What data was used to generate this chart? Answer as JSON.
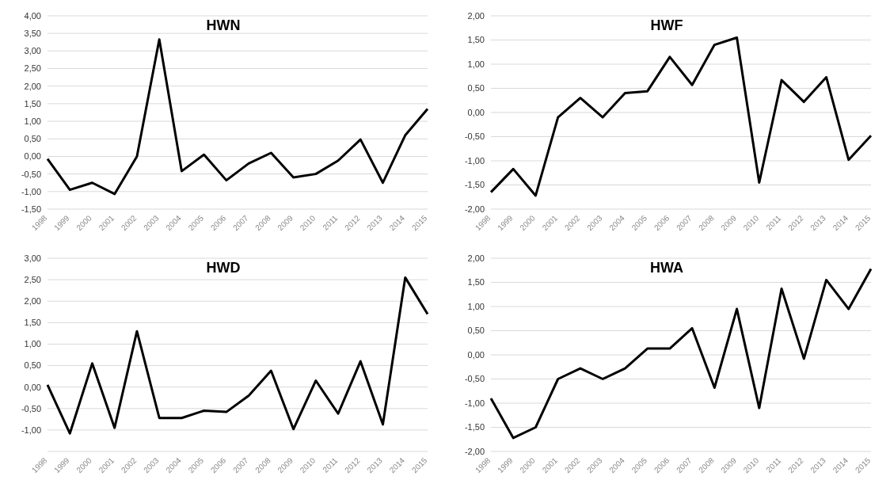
{
  "chart_data": [
    {
      "type": "line",
      "title": "HWN",
      "categories": [
        "1998",
        "1999",
        "2000",
        "2001",
        "2002",
        "2003",
        "2004",
        "2005",
        "2006",
        "2007",
        "2008",
        "2009",
        "2010",
        "2011",
        "2012",
        "2013",
        "2014",
        "2015"
      ],
      "series": [
        {
          "color": "#000000",
          "values": [
            -0.07,
            -0.95,
            -0.75,
            -1.07,
            0.0,
            3.33,
            -0.42,
            0.05,
            -0.68,
            -0.2,
            0.1,
            -0.6,
            -0.5,
            -0.12,
            0.48,
            -0.75,
            0.6,
            1.35
          ]
        }
      ],
      "ylim": [
        -1.5,
        4
      ],
      "yticks": [
        {
          "value": -1.5,
          "label": "-1,50"
        },
        {
          "value": -1,
          "label": "-1,00"
        },
        {
          "value": -0.5,
          "label": "-0,50"
        },
        {
          "value": 0,
          "label": "0,00"
        },
        {
          "value": 0.5,
          "label": "0,50"
        },
        {
          "value": 1,
          "label": "1,00"
        },
        {
          "value": 1.5,
          "label": "1,50"
        },
        {
          "value": 2,
          "label": "2,00"
        },
        {
          "value": 2.5,
          "label": "2,50"
        },
        {
          "value": 3,
          "label": "3,00"
        },
        {
          "value": 3.5,
          "label": "3,50"
        },
        {
          "value": 4,
          "label": "4,00"
        }
      ],
      "grid": "y",
      "marker": "none",
      "line_style": "solid",
      "legend": false
    },
    {
      "type": "line",
      "title": "HWF",
      "categories": [
        "1998",
        "1999",
        "2000",
        "2001",
        "2002",
        "2003",
        "2004",
        "2005",
        "2006",
        "2007",
        "2008",
        "2009",
        "2010",
        "2011",
        "2012",
        "2013",
        "2014",
        "2015"
      ],
      "series": [
        {
          "color": "#000000",
          "values": [
            -1.65,
            -1.17,
            -1.72,
            -0.1,
            0.3,
            -0.1,
            0.4,
            0.44,
            1.15,
            0.57,
            1.4,
            1.55,
            -1.45,
            0.67,
            0.22,
            0.73,
            -0.98,
            -0.48
          ]
        }
      ],
      "ylim": [
        -2,
        2
      ],
      "yticks": [
        {
          "value": -2,
          "label": "-2,00"
        },
        {
          "value": -1.5,
          "label": "-1,50"
        },
        {
          "value": -1,
          "label": "-1,00"
        },
        {
          "value": -0.5,
          "label": "-0,50"
        },
        {
          "value": 0,
          "label": "0,00"
        },
        {
          "value": 0.5,
          "label": "0,50"
        },
        {
          "value": 1,
          "label": "1,00"
        },
        {
          "value": 1.5,
          "label": "1,50"
        },
        {
          "value": 2,
          "label": "2,00"
        }
      ],
      "grid": "y",
      "marker": "none",
      "line_style": "solid",
      "legend": false
    },
    {
      "type": "line",
      "title": "HWD",
      "categories": [
        "1998",
        "1999",
        "2000",
        "2001",
        "2002",
        "2003",
        "2004",
        "2005",
        "2006",
        "2007",
        "2008",
        "2009",
        "2010",
        "2011",
        "2012",
        "2013",
        "2014",
        "2015"
      ],
      "series": [
        {
          "color": "#000000",
          "values": [
            0.05,
            -1.08,
            0.55,
            -0.95,
            1.3,
            -0.72,
            -0.72,
            -0.55,
            -0.58,
            -0.2,
            0.38,
            -0.98,
            0.15,
            -0.62,
            0.6,
            -0.87,
            2.55,
            1.7
          ]
        }
      ],
      "ylim": [
        -1.5,
        3
      ],
      "yticks": [
        {
          "value": -1,
          "label": "-1,00"
        },
        {
          "value": -0.5,
          "label": "-0,50"
        },
        {
          "value": 0,
          "label": "0,00"
        },
        {
          "value": 0.5,
          "label": "0,50"
        },
        {
          "value": 1,
          "label": "1,00"
        },
        {
          "value": 1.5,
          "label": "1,50"
        },
        {
          "value": 2,
          "label": "2,00"
        },
        {
          "value": 2.5,
          "label": "2,50"
        },
        {
          "value": 3,
          "label": "3,00"
        }
      ],
      "grid": "y",
      "marker": "none",
      "line_style": "solid",
      "legend": false
    },
    {
      "type": "line",
      "title": "HWA",
      "categories": [
        "1998",
        "1999",
        "2000",
        "2001",
        "2002",
        "2003",
        "2004",
        "2005",
        "2006",
        "2007",
        "2008",
        "2009",
        "2010",
        "2011",
        "2012",
        "2013",
        "2014",
        "2015"
      ],
      "series": [
        {
          "color": "#000000",
          "values": [
            -0.9,
            -1.72,
            -1.5,
            -0.5,
            -0.28,
            -0.5,
            -0.28,
            0.13,
            0.13,
            0.55,
            -0.68,
            0.95,
            -1.1,
            1.37,
            -0.08,
            1.55,
            0.95,
            1.78
          ]
        }
      ],
      "ylim": [
        -2,
        2
      ],
      "yticks": [
        {
          "value": -2,
          "label": "-2,00"
        },
        {
          "value": -1.5,
          "label": "-1,50"
        },
        {
          "value": -1,
          "label": "-1,00"
        },
        {
          "value": -0.5,
          "label": "-0,50"
        },
        {
          "value": 0,
          "label": "0,00"
        },
        {
          "value": 0.5,
          "label": "0,50"
        },
        {
          "value": 1,
          "label": "1,00"
        },
        {
          "value": 1.5,
          "label": "1,50"
        },
        {
          "value": 2,
          "label": "2,00"
        }
      ],
      "grid": "y",
      "marker": "none",
      "line_style": "solid",
      "legend": false
    }
  ]
}
